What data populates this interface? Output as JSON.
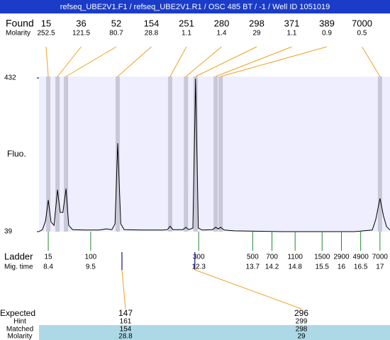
{
  "chart_data": {
    "type": "line",
    "title": "refseq_UBE2V1.F1 / refseq_UBE2V1.R1 / OSC 485 BT / -1 / Well ID 1051019",
    "y_label": "Fluo.",
    "ylim": [
      39,
      432
    ],
    "yticks": [
      432,
      39
    ],
    "xlim": [
      8.16,
      17.26
    ],
    "color": "#000000",
    "x": [
      8.16,
      8.25,
      8.33,
      8.4,
      8.47,
      8.55,
      8.64,
      8.71,
      8.78,
      8.86,
      8.93,
      9.03,
      9.36,
      9.72,
      9.91,
      10.05,
      10.13,
      10.2,
      10.28,
      10.37,
      10.83,
      11.38,
      11.49,
      11.56,
      11.63,
      11.89,
      11.97,
      12.04,
      12.15,
      12.22,
      12.29,
      12.39,
      12.66,
      12.74,
      12.81,
      12.87,
      12.96,
      13.22,
      14.5,
      16.34,
      16.8,
      16.89,
      17.0,
      17.09,
      17.17,
      17.26
    ],
    "values": [
      39,
      44,
      66,
      120,
      64,
      55,
      146,
      88,
      88,
      149,
      55,
      44,
      43,
      43,
      46,
      44,
      59,
      265,
      59,
      44,
      43,
      43,
      44,
      53,
      44,
      44,
      50,
      44,
      48,
      430,
      48,
      43,
      44,
      50,
      46,
      50,
      43,
      41,
      39,
      39,
      43,
      70,
      124,
      79,
      52,
      43
    ],
    "found": {
      "label": "Found",
      "molarity_label": "Molarity",
      "sizes": [
        15,
        36,
        52,
        154,
        251,
        280,
        298,
        371,
        389,
        7000
      ],
      "molarity": [
        252.5,
        121.5,
        80.7,
        28.8,
        1.1,
        1.4,
        29,
        1.1,
        0.9,
        0.5
      ],
      "times": [
        8.4,
        8.64,
        8.86,
        10.2,
        11.56,
        11.97,
        12.22,
        12.74,
        12.87,
        17.0
      ],
      "color": "#f0a020"
    },
    "ladder": {
      "label": "Ladder",
      "time_label": "Mig. time",
      "sizes": [
        15,
        100,
        300,
        500,
        700,
        1100,
        1500,
        2900,
        4900,
        7000
      ],
      "times": [
        8.4,
        9.5,
        12.3,
        13.7,
        14.2,
        14.8,
        15.5,
        16,
        16.5,
        17
      ],
      "color": "#228833"
    },
    "expected": {
      "label": "Expected",
      "hint_label": "Hint",
      "matched_label": "Matched",
      "molarity_label": "Molarity",
      "sizes": [
        147,
        296
      ],
      "hint": [
        161,
        299
      ],
      "matched": [
        154,
        298
      ],
      "molarity": [
        28.8,
        29
      ],
      "times": [
        10.31,
        12.2
      ]
    }
  }
}
